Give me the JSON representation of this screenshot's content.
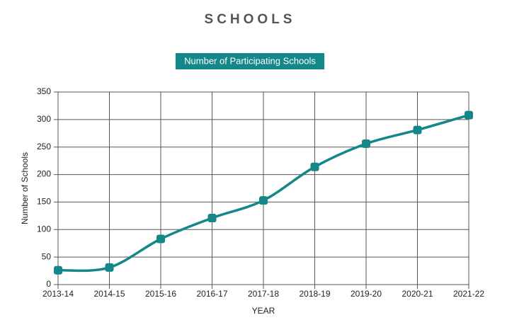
{
  "chart_data": {
    "type": "line",
    "title": "SCHOOLS",
    "x_label": "YEAR",
    "y_label": "Number of Schools",
    "categories": [
      "2013-14",
      "2014-15",
      "2015-16",
      "2016-17",
      "2017-18",
      "2018-19",
      "2019-20",
      "2020-21",
      "2021-22"
    ],
    "series": [
      {
        "name": "Number of Participating Schools",
        "color": "#14878a",
        "values": [
          26,
          31,
          83,
          121,
          153,
          214,
          256,
          281,
          308
        ]
      }
    ],
    "ylim": [
      0,
      350
    ],
    "yticks": [
      0,
      50,
      100,
      150,
      200,
      250,
      300,
      350
    ],
    "grid": true,
    "smooth": true,
    "legend": "top"
  }
}
